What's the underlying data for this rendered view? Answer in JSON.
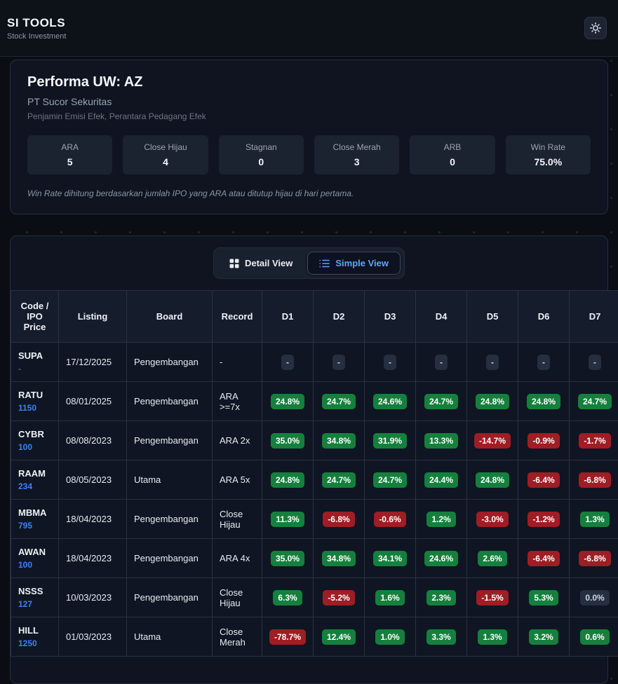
{
  "header": {
    "title": "SI TOOLS",
    "subtitle": "Stock Investment"
  },
  "performance": {
    "title": "Performa UW: AZ",
    "company": "PT Sucor Sekuritas",
    "license": "Penjamin Emisi Efek, Perantara Pedagang Efek",
    "stats": [
      {
        "label": "ARA",
        "value": "5"
      },
      {
        "label": "Close Hijau",
        "value": "4"
      },
      {
        "label": "Stagnan",
        "value": "0"
      },
      {
        "label": "Close Merah",
        "value": "3"
      },
      {
        "label": "ARB",
        "value": "0"
      },
      {
        "label": "Win Rate",
        "value": "75.0%"
      }
    ],
    "note": "Win Rate dihitung berdasarkan jumlah IPO yang ARA atau ditutup hijau di hari pertama."
  },
  "view_toggle": {
    "detail_label": "Detail View",
    "simple_label": "Simple View",
    "active": "simple"
  },
  "table": {
    "columns": [
      "Code / IPO Price",
      "Listing",
      "Board",
      "Record",
      "D1",
      "D2",
      "D3",
      "D4",
      "D5",
      "D6",
      "D7"
    ],
    "rows": [
      {
        "code": "SUPA",
        "price": "-",
        "listing": "17/12/2025",
        "board": "Pengembangan",
        "record": "-",
        "days": [
          "-",
          "-",
          "-",
          "-",
          "-",
          "-",
          "-"
        ]
      },
      {
        "code": "RATU",
        "price": "1150",
        "listing": "08/01/2025",
        "board": "Pengembangan",
        "record": "ARA >=7x",
        "days": [
          "24.8%",
          "24.7%",
          "24.6%",
          "24.7%",
          "24.8%",
          "24.8%",
          "24.7%"
        ]
      },
      {
        "code": "CYBR",
        "price": "100",
        "listing": "08/08/2023",
        "board": "Pengembangan",
        "record": "ARA 2x",
        "days": [
          "35.0%",
          "34.8%",
          "31.9%",
          "13.3%",
          "-14.7%",
          "-0.9%",
          "-1.7%"
        ]
      },
      {
        "code": "RAAM",
        "price": "234",
        "listing": "08/05/2023",
        "board": "Utama",
        "record": "ARA 5x",
        "days": [
          "24.8%",
          "24.7%",
          "24.7%",
          "24.4%",
          "24.8%",
          "-6.4%",
          "-6.8%"
        ]
      },
      {
        "code": "MBMA",
        "price": "795",
        "listing": "18/04/2023",
        "board": "Pengembangan",
        "record": "Close Hijau",
        "days": [
          "11.3%",
          "-6.8%",
          "-0.6%",
          "1.2%",
          "-3.0%",
          "-1.2%",
          "1.3%"
        ]
      },
      {
        "code": "AWAN",
        "price": "100",
        "listing": "18/04/2023",
        "board": "Pengembangan",
        "record": "ARA 4x",
        "days": [
          "35.0%",
          "34.8%",
          "34.1%",
          "24.6%",
          "2.6%",
          "-6.4%",
          "-6.8%"
        ]
      },
      {
        "code": "NSSS",
        "price": "127",
        "listing": "10/03/2023",
        "board": "Pengembangan",
        "record": "Close Hijau",
        "days": [
          "6.3%",
          "-5.2%",
          "1.6%",
          "2.3%",
          "-1.5%",
          "5.3%",
          "0.0%"
        ]
      },
      {
        "code": "HILL",
        "price": "1250",
        "listing": "01/03/2023",
        "board": "Utama",
        "record": "Close Merah",
        "days": [
          "-78.7%",
          "12.4%",
          "1.0%",
          "3.3%",
          "1.3%",
          "3.2%",
          "0.6%"
        ]
      }
    ]
  },
  "colors": {
    "positive": "#15803d",
    "negative": "#9f1d24",
    "neutral": "#252f40",
    "accent_blue": "#60a5fa",
    "price_blue": "#3b82f6"
  }
}
